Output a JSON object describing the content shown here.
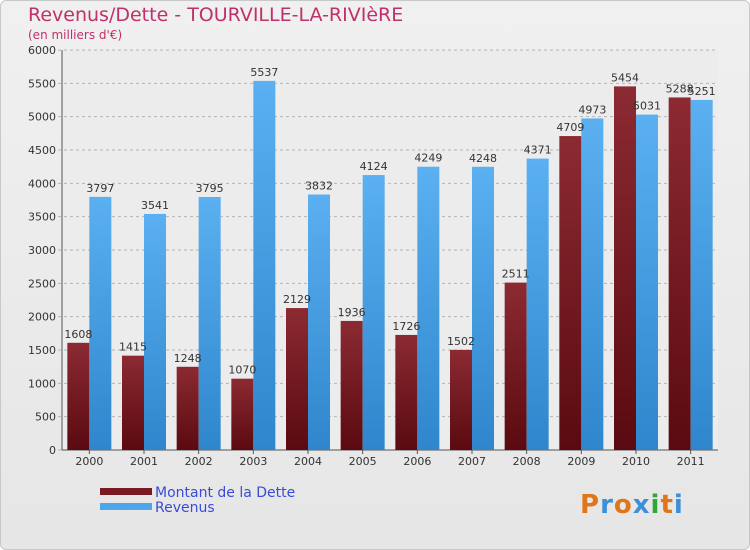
{
  "header": {
    "title": "Revenus/Dette - TOURVILLE-LA-RIVIèRE",
    "subtitle": "(en milliers d'€)"
  },
  "legend": {
    "items": [
      "Montant de la Dette",
      "Revenus"
    ]
  },
  "logo": {
    "text": "Proxiti",
    "colors": [
      "#e0761c",
      "#3c8fd8",
      "#e0761c",
      "#3c8fd8",
      "#2ea836",
      "#e0761c",
      "#3c8fd8"
    ]
  },
  "colors": {
    "dette": "#7a1a22",
    "revenus": "#4ba6ea",
    "grid": "#b5b5b5",
    "axis": "#555555",
    "text": "#333333",
    "title": "#c0306a",
    "legend_text": "#3a4bd8"
  },
  "chart_data": {
    "type": "bar",
    "title": "Revenus/Dette - TOURVILLE-LA-RIVIèRE",
    "subtitle": "(en milliers d'€)",
    "categories": [
      "2000",
      "2001",
      "2002",
      "2003",
      "2004",
      "2005",
      "2006",
      "2007",
      "2008",
      "2009",
      "2010",
      "2011"
    ],
    "series": [
      {
        "name": "Montant de la Dette",
        "values": [
          1608,
          1415,
          1248,
          1070,
          2129,
          1936,
          1726,
          1502,
          2511,
          4709,
          5454,
          5288
        ]
      },
      {
        "name": "Revenus",
        "values": [
          3797,
          3541,
          3795,
          5537,
          3832,
          4124,
          4249,
          4248,
          4371,
          4973,
          5031,
          5251
        ]
      }
    ],
    "ylim": [
      0,
      6000
    ],
    "yticks": [
      0,
      500,
      1000,
      1500,
      2000,
      2500,
      3000,
      3500,
      4000,
      4500,
      5000,
      5500,
      6000
    ],
    "grid": true,
    "legend_position": "bottom-left"
  }
}
